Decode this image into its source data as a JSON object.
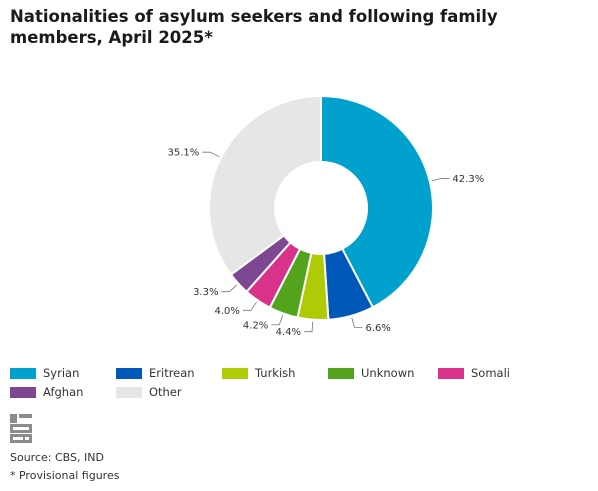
{
  "chart_data": {
    "type": "pie",
    "variant": "donut",
    "title": "Nationalities of asylum seekers and following family members, April 2025*",
    "slices": [
      {
        "name": "Syrian",
        "value": 42.3,
        "label": "42.3%",
        "color": "#00a1cd"
      },
      {
        "name": "Eritrean",
        "value": 6.6,
        "label": "6.6%",
        "color": "#0058b8"
      },
      {
        "name": "Turkish",
        "value": 4.4,
        "label": "4.4%",
        "color": "#afcb05"
      },
      {
        "name": "Unknown",
        "value": 4.2,
        "label": "4.2%",
        "color": "#53a31d"
      },
      {
        "name": "Somali",
        "value": 4.0,
        "label": "4.0%",
        "color": "#d9328a"
      },
      {
        "name": "Afghan",
        "value": 3.3,
        "label": "3.3%",
        "color": "#7d4791"
      },
      {
        "name": "Other",
        "value": 35.1,
        "label": "35.1%",
        "color": "#e6e6e6"
      }
    ],
    "legend_position": "bottom"
  },
  "footer": {
    "source": "Source: CBS, IND",
    "note": "* Provisional figures",
    "logo_icon": "cbs-logo-icon"
  }
}
